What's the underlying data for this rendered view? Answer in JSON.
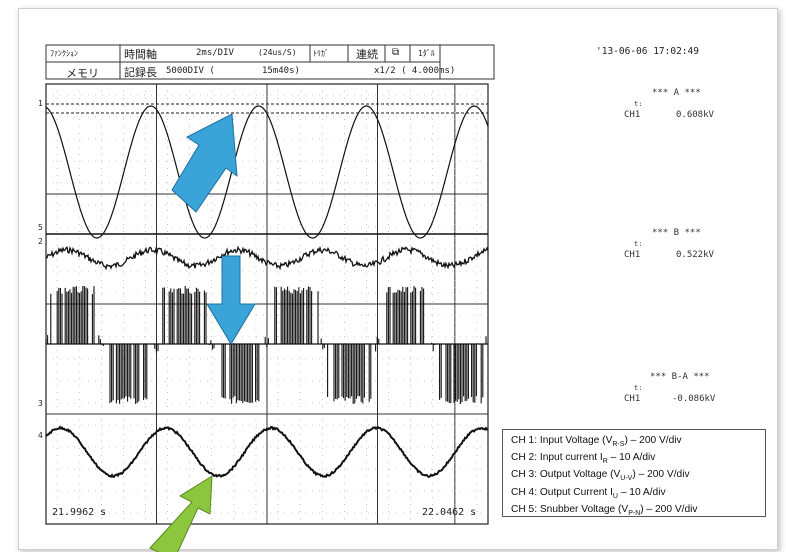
{
  "header": {
    "mode": "ﾌｧﾝｸｼｮﾝ",
    "mem": "メモリ",
    "timebase_label": "時間軸",
    "timebase_value": "2ms/DIV",
    "rate": "(24us/S)",
    "trigger": "ﾄﾘｶﾞ",
    "continuous": "連続",
    "count": "1ﾀﾞﾙ",
    "rec_label": "記録長",
    "rec_value": "5000DIV (",
    "rec_time": "15m40s)",
    "zoom": "x1/2 ( 4.000ms)",
    "timestamp": "'13-06-06 17:02:49"
  },
  "readouts": [
    {
      "title": "*** A ***",
      "t": "t:",
      "ch": "CH1",
      "value": "0.608kV"
    },
    {
      "title": "*** B ***",
      "t": "t:",
      "ch": "CH1",
      "value": "0.522kV"
    },
    {
      "title": "*** B-A ***",
      "t": "t:",
      "ch": "CH1",
      "value": "-0.086kV"
    }
  ],
  "time_start": "21.9962 s",
  "time_end": "22.0462 s",
  "channel_markers": [
    "1",
    "5",
    "2",
    "3",
    "4"
  ],
  "legend": {
    "items": [
      {
        "pre": "CH 1: Input Voltage (V",
        "sub": "R-S",
        "post": ") – 200 V/div"
      },
      {
        "pre": "CH 2: Input current I",
        "sub": "R",
        "post": " – 10 A/div"
      },
      {
        "pre": "CH 3: Output Voltage (V",
        "sub": "U-V",
        "post": ") – 200 V/div"
      },
      {
        "pre": "CH 4: Output Current I",
        "sub": "U",
        "post": " – 10 A/div"
      },
      {
        "pre": "CH 5: Snubber Voltage (V",
        "sub": "P-N",
        "post": ") – 200 V/div"
      }
    ]
  },
  "arrows": {
    "up_color": "#3aa4d8",
    "down_color": "#3aa4d8",
    "green_color": "#8cc63f"
  },
  "chart_data": {
    "type": "line",
    "xlim": [
      21.9962,
      22.0462
    ],
    "grid_divisions": {
      "x": 4,
      "y": 4
    },
    "series": [
      {
        "name": "CH 1: Input Voltage (VR-S)",
        "shape": "sine",
        "cycles": 4.1,
        "phase_deg": 100
      },
      {
        "name": "CH 2: Input current IR",
        "shape": "noisy_sine",
        "cycles": 5.2,
        "phase_deg": 0
      },
      {
        "name": "CH 3: Output Voltage (VU-V)",
        "shape": "pwm",
        "cycles": 4.0,
        "phase_deg": 0
      },
      {
        "name": "CH 4: Output Current IU",
        "shape": "sine",
        "cycles": 4.2,
        "phase_deg": 40
      },
      {
        "name": "CH 5: Snubber Voltage (VP-N)",
        "shape": "flat",
        "cycles": 0,
        "phase_deg": 0
      }
    ]
  }
}
